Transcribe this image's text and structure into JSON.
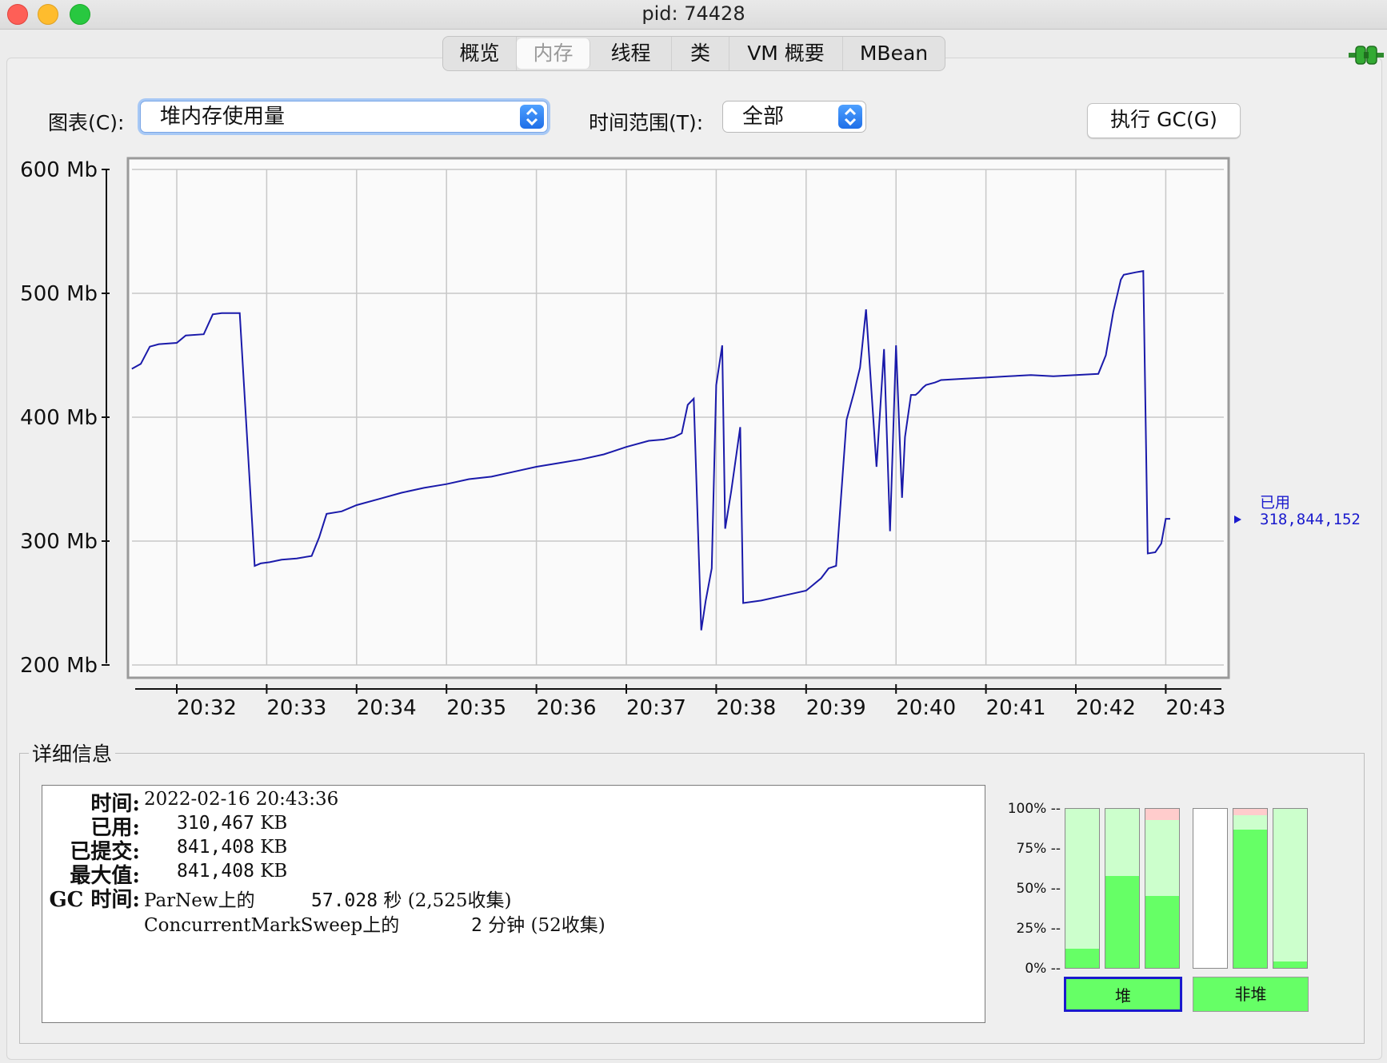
{
  "window": {
    "title": "pid: 74428"
  },
  "tabs": [
    {
      "label": "概览",
      "active": false
    },
    {
      "label": "内存",
      "active": true
    },
    {
      "label": "线程",
      "active": false
    },
    {
      "label": "类",
      "active": false
    },
    {
      "label": "VM 概要",
      "active": false
    },
    {
      "label": "MBean",
      "active": false
    }
  ],
  "toolbar": {
    "chart_label": "图表(C):",
    "chart_value": "堆内存使用量",
    "range_label": "时间范围(T):",
    "range_value": "全部",
    "gc_button": "执行 GC(G)"
  },
  "chart_data": {
    "type": "line",
    "y_ticks": [
      "600 Mb",
      "500 Mb",
      "400 Mb",
      "300 Mb",
      "200 Mb"
    ],
    "ylim": [
      200,
      600
    ],
    "x_ticks": [
      "20:32",
      "20:33",
      "20:34",
      "20:35",
      "20:36",
      "20:37",
      "20:38",
      "20:39",
      "20:40",
      "20:41",
      "20:42",
      "20:43"
    ],
    "x": [
      "20:31:30",
      "20:31:36",
      "20:31:42",
      "20:31:48",
      "20:32:00",
      "20:32:06",
      "20:32:18",
      "20:32:24",
      "20:32:30",
      "20:32:36",
      "20:32:42",
      "20:32:52",
      "20:32:56",
      "20:33:02",
      "20:33:10",
      "20:33:20",
      "20:33:30",
      "20:33:35",
      "20:33:40",
      "20:33:50",
      "20:34:00",
      "20:34:15",
      "20:34:30",
      "20:34:45",
      "20:35:00",
      "20:35:15",
      "20:35:30",
      "20:35:45",
      "20:36:00",
      "20:36:15",
      "20:36:30",
      "20:36:45",
      "20:37:00",
      "20:37:15",
      "20:37:25",
      "20:37:32",
      "20:37:37",
      "20:37:41",
      "20:37:45",
      "20:37:50",
      "20:37:53",
      "20:37:57",
      "20:38:00",
      "20:38:04",
      "20:38:06",
      "20:38:10",
      "20:38:16",
      "20:38:18",
      "20:38:30",
      "20:38:45",
      "20:39:00",
      "20:39:10",
      "20:39:15",
      "20:39:20",
      "20:39:27",
      "20:39:32",
      "20:39:36",
      "20:39:40",
      "20:39:47",
      "20:39:52",
      "20:39:56",
      "20:40:00",
      "20:40:04",
      "20:40:06",
      "20:40:10",
      "20:40:13",
      "20:40:15",
      "20:40:18",
      "20:40:20",
      "20:40:26",
      "20:40:28",
      "20:40:30",
      "20:40:45",
      "20:41:00",
      "20:41:15",
      "20:41:30",
      "20:41:45",
      "20:42:00",
      "20:42:15",
      "20:42:20",
      "20:42:25",
      "20:42:30",
      "20:42:32",
      "20:42:40",
      "20:42:45",
      "20:42:48",
      "20:42:53",
      "20:42:57",
      "20:43:00",
      "20:43:03"
    ],
    "series": [
      {
        "name": "已用",
        "color": "#1a1aaa",
        "values": [
          439,
          443,
          457,
          459,
          460,
          466,
          467,
          483,
          484,
          484,
          484,
          280,
          282,
          283,
          285,
          286,
          288,
          303,
          322,
          324,
          329,
          334,
          339,
          343,
          346,
          350,
          352,
          356,
          360,
          363,
          366,
          370,
          376,
          381,
          382,
          384,
          387,
          410,
          415,
          228,
          252,
          278,
          426,
          458,
          310,
          340,
          392,
          250,
          252,
          256,
          260,
          270,
          278,
          280,
          398,
          420,
          440,
          487,
          360,
          455,
          308,
          458,
          335,
          384,
          418,
          418,
          420,
          424,
          426,
          428,
          429,
          430,
          431,
          432,
          433,
          434,
          433,
          434,
          435,
          450,
          485,
          511,
          515,
          517,
          518,
          290,
          291,
          298,
          318,
          318
        ]
      }
    ],
    "current": {
      "label": "已用",
      "value": "318,844,152"
    }
  },
  "details": {
    "title": "详细信息",
    "time_label": "时间:",
    "time_value": "2022-02-16 20:43:36",
    "used_label": "已用:",
    "used_value": "310,467",
    "committed_label": "已提交:",
    "committed_value": "841,408",
    "max_label": "最大值:",
    "max_value": "841,408",
    "unit": "KB",
    "gc_label": "GC 时间:",
    "gc1_name": "ParNew上的",
    "gc1_value": "57.028",
    "gc1_unit": "秒",
    "gc1_count": "(2,525收集)",
    "gc2_name": "ConcurrentMarkSweep上的",
    "gc2_value": "2",
    "gc2_unit": "分钟",
    "gc2_count": "(52收集)"
  },
  "pool_chart": {
    "pct_labels": [
      "100% --",
      "75% --",
      "50% --",
      "25% --",
      "0% --"
    ],
    "bars": [
      {
        "used": 0.12,
        "committed": 1.0,
        "reserved": 0.0
      },
      {
        "used": 0.58,
        "committed": 1.0,
        "reserved": 0.0
      },
      {
        "used": 0.45,
        "committed": 0.93,
        "reserved": 0.07
      },
      {
        "used": 0.0,
        "committed": 0.0,
        "reserved": 0.0
      },
      {
        "used": 0.87,
        "committed": 0.96,
        "reserved": 0.04
      },
      {
        "used": 0.04,
        "committed": 1.0,
        "reserved": 0.0
      }
    ],
    "heap_button": "堆",
    "nonheap_button": "非堆"
  }
}
